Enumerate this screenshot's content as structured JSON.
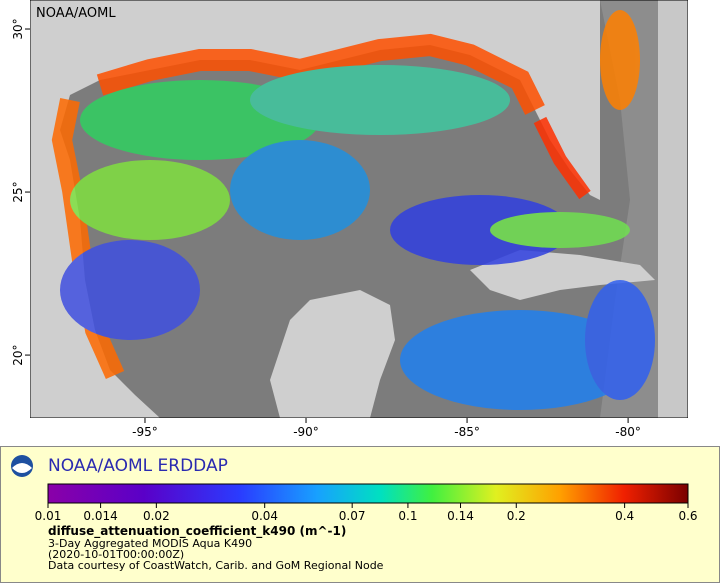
{
  "map": {
    "corner_label": "NOAA/AOML",
    "lon_lim": [
      -98.57,
      -78.14
    ],
    "lat_lim": [
      18.07,
      30.89
    ],
    "lon_ticks": [
      {
        "value": -95,
        "label": "-95°"
      },
      {
        "value": -90,
        "label": "-90°"
      },
      {
        "value": -85,
        "label": "-85°"
      },
      {
        "value": -80,
        "label": "-80°"
      }
    ],
    "lat_ticks": [
      {
        "value": 30,
        "label": "30°"
      },
      {
        "value": 25,
        "label": "25°"
      },
      {
        "value": 20,
        "label": "20°"
      }
    ]
  },
  "legend": {
    "title": "NOAA/AOML ERDDAP",
    "colorbar": {
      "log_scale": true,
      "lim": [
        0.01,
        0.6
      ],
      "ticks": [
        0.01,
        0.014,
        0.02,
        0.04,
        0.07,
        0.1,
        0.14,
        0.2,
        0.4,
        0.6
      ]
    },
    "variable": "diffuse_attenuation_coefficient_k490 (m^-1)",
    "lines": [
      "3-Day Aggregated MODIS Aqua K490",
      "(2020-10-01T00:00:00Z)",
      "Data courtesy of CoastWatch, Carib. and GoM Regional Node"
    ]
  }
}
